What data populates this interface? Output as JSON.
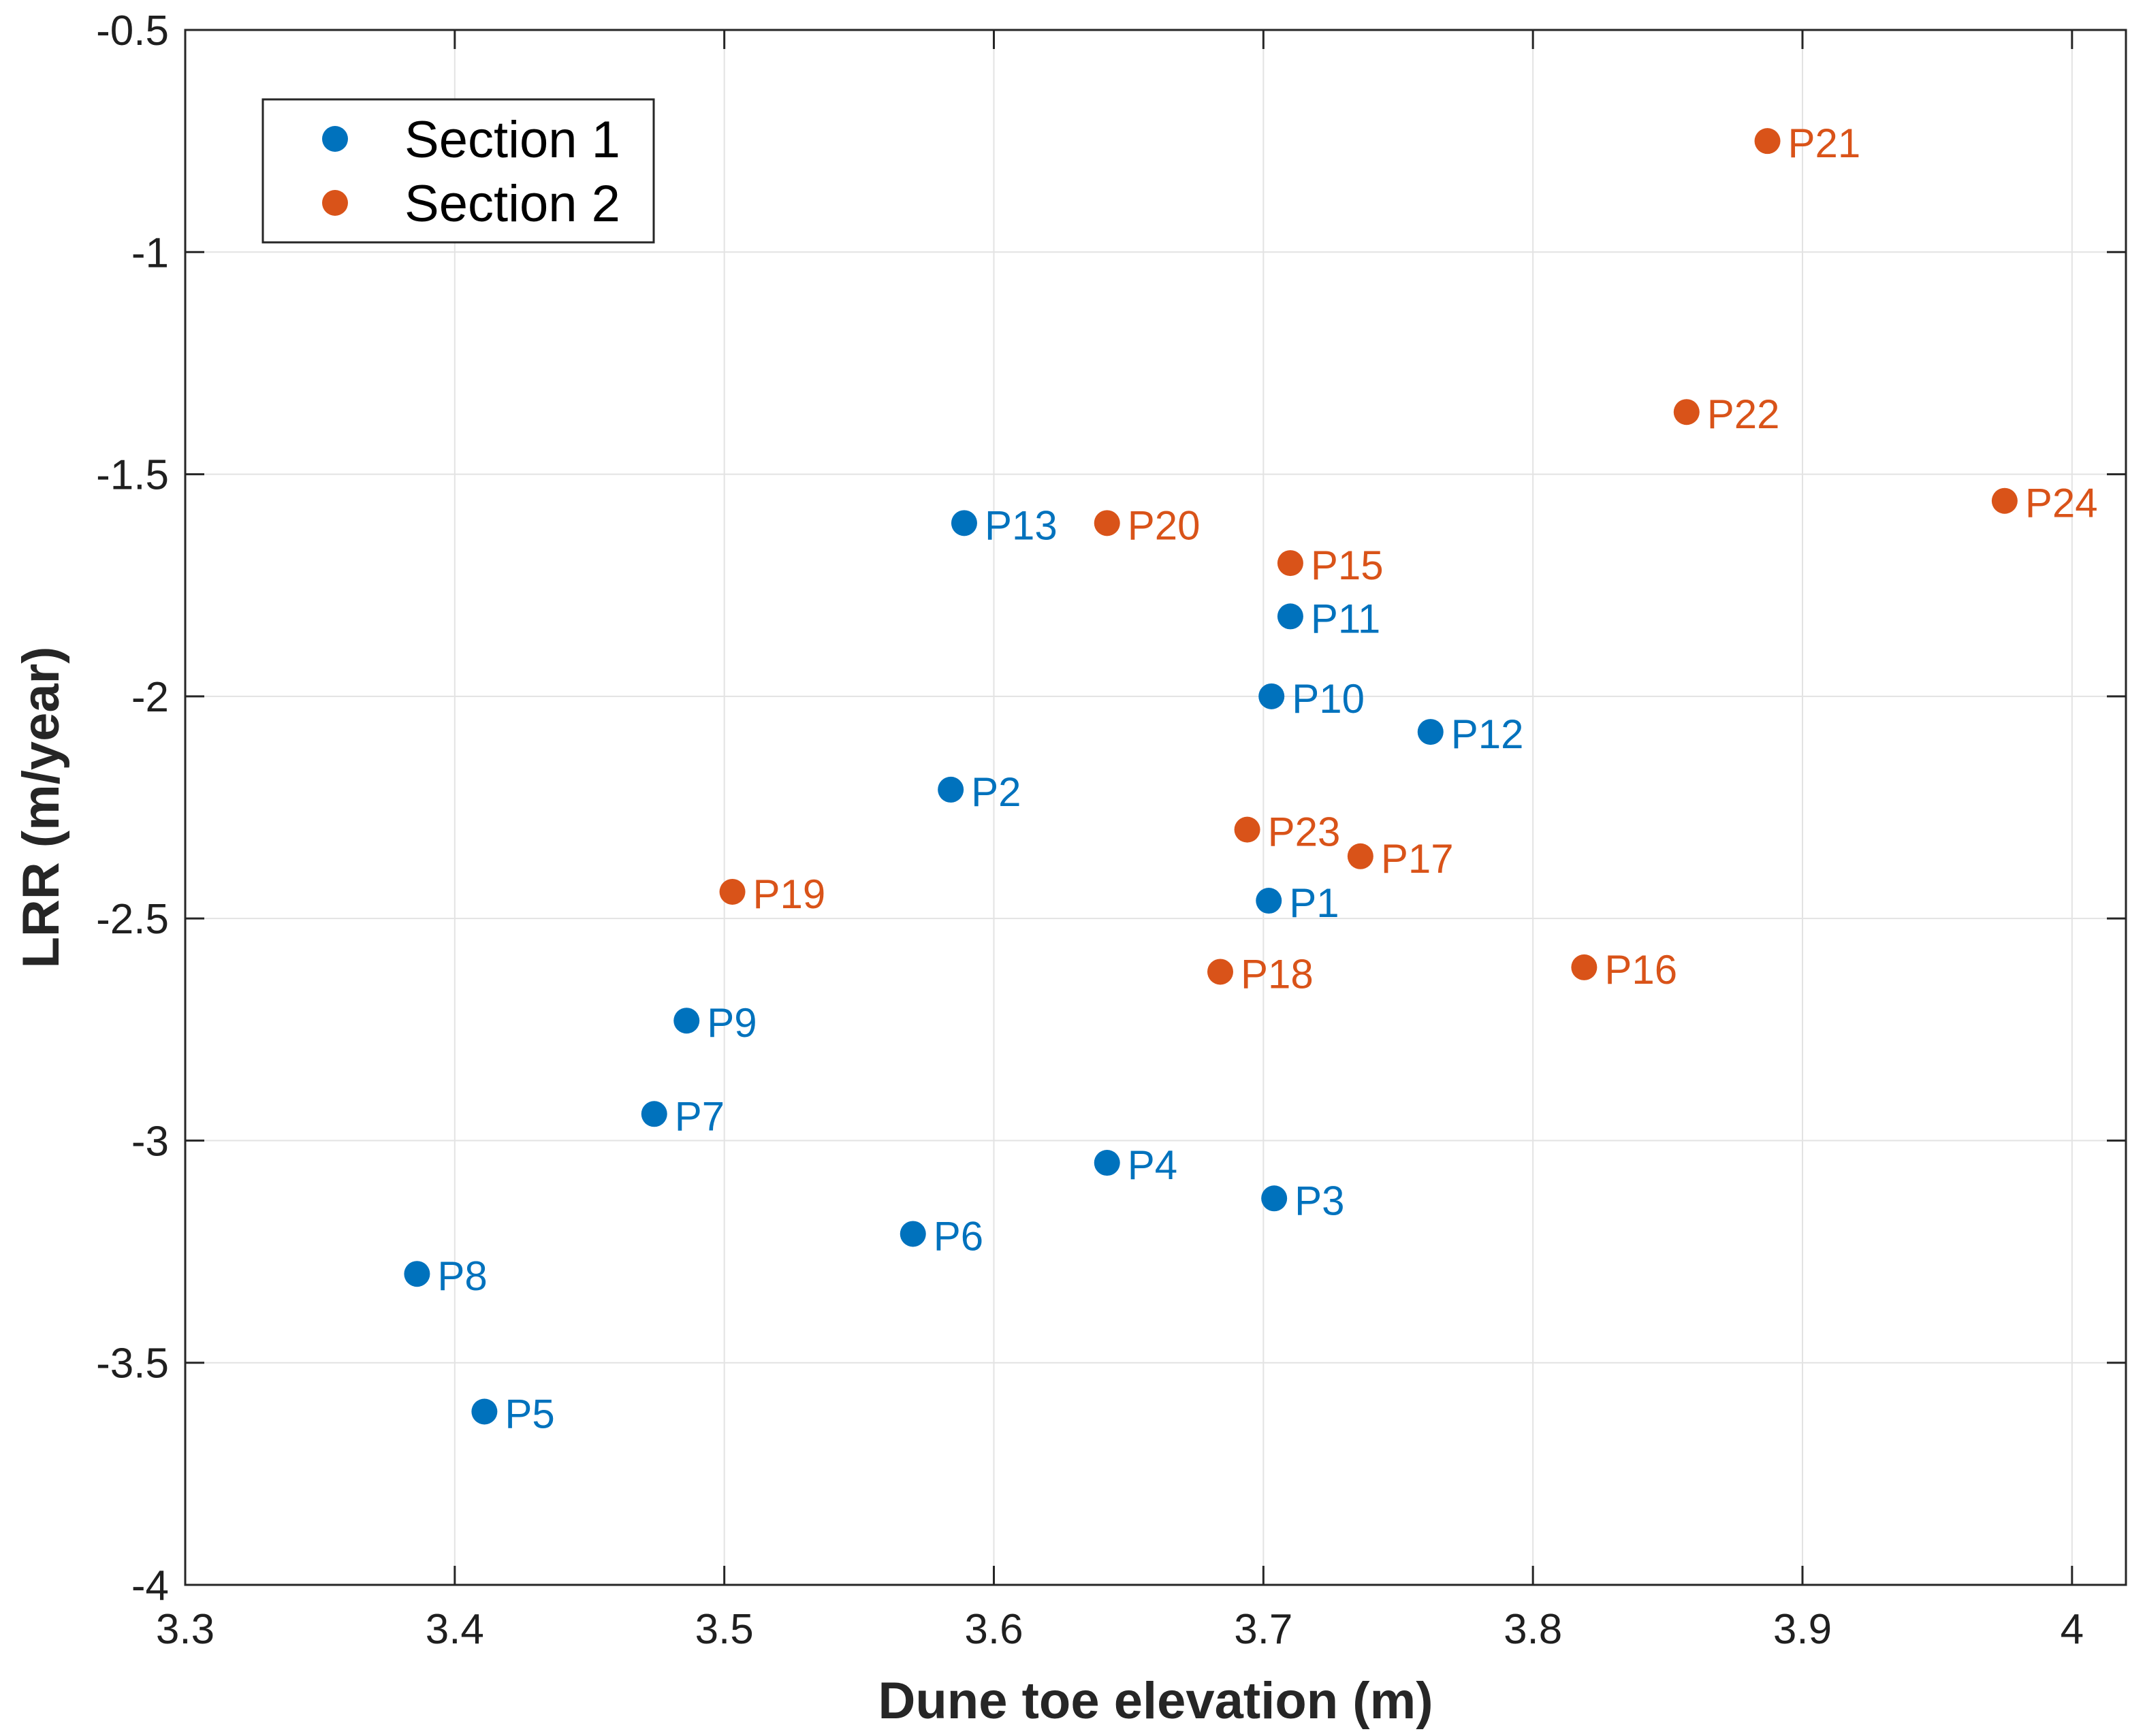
{
  "chart_data": {
    "type": "scatter",
    "title": "",
    "xlabel": "Dune toe elevation (m)",
    "ylabel": "LRR (m/year)",
    "xlim": [
      3.3,
      4.02
    ],
    "ylim": [
      -4,
      -0.5
    ],
    "xticks": [
      3.3,
      3.4,
      3.5,
      3.6,
      3.7,
      3.8,
      3.9,
      4.0
    ],
    "xtick_labels": [
      "3.3",
      "3.4",
      "3.5",
      "3.6",
      "3.7",
      "3.8",
      "3.9",
      "4"
    ],
    "yticks": [
      -0.5,
      -1,
      -1.5,
      -2,
      -2.5,
      -3,
      -3.5,
      -4
    ],
    "ytick_labels": [
      "-0.5",
      "-1",
      "-1.5",
      "-2",
      "-2.5",
      "-3",
      "-3.5",
      "-4"
    ],
    "grid": true,
    "legend_position": "top-left",
    "series": [
      {
        "name": "Section 1",
        "color": "#0072BD",
        "points": [
          {
            "label": "P1",
            "x": 3.702,
            "y": -2.46
          },
          {
            "label": "P2",
            "x": 3.584,
            "y": -2.21
          },
          {
            "label": "P3",
            "x": 3.704,
            "y": -3.13
          },
          {
            "label": "P4",
            "x": 3.642,
            "y": -3.05
          },
          {
            "label": "P5",
            "x": 3.411,
            "y": -3.61
          },
          {
            "label": "P6",
            "x": 3.57,
            "y": -3.21
          },
          {
            "label": "P7",
            "x": 3.474,
            "y": -2.94
          },
          {
            "label": "P8",
            "x": 3.386,
            "y": -3.3
          },
          {
            "label": "P9",
            "x": 3.486,
            "y": -2.73
          },
          {
            "label": "P10",
            "x": 3.703,
            "y": -2.0
          },
          {
            "label": "P11",
            "x": 3.71,
            "y": -1.82
          },
          {
            "label": "P12",
            "x": 3.762,
            "y": -2.08
          },
          {
            "label": "P13",
            "x": 3.589,
            "y": -1.61
          }
        ]
      },
      {
        "name": "Section 2",
        "color": "#D95319",
        "points": [
          {
            "label": "P15",
            "x": 3.71,
            "y": -1.7
          },
          {
            "label": "P16",
            "x": 3.819,
            "y": -2.61
          },
          {
            "label": "P17",
            "x": 3.736,
            "y": -2.36
          },
          {
            "label": "P18",
            "x": 3.684,
            "y": -2.62
          },
          {
            "label": "P19",
            "x": 3.503,
            "y": -2.44
          },
          {
            "label": "P20",
            "x": 3.642,
            "y": -1.61
          },
          {
            "label": "P21",
            "x": 3.887,
            "y": -0.75
          },
          {
            "label": "P22",
            "x": 3.857,
            "y": -1.36
          },
          {
            "label": "P23",
            "x": 3.694,
            "y": -2.3
          },
          {
            "label": "P24",
            "x": 3.975,
            "y": -1.56
          }
        ]
      }
    ]
  }
}
